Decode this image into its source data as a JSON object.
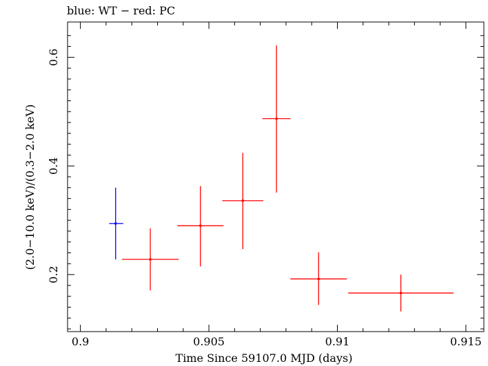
{
  "chart_data": {
    "type": "scatter",
    "title": "blue: WT − red: PC",
    "xlabel": "Time Since 59107.0 MJD (days)",
    "ylabel": "(2.0−10.0 keV)/(0.3−2.0 keV)",
    "xlim": [
      0.8995,
      0.9157
    ],
    "ylim": [
      0.095,
      0.665
    ],
    "x_ticks": [
      0.9,
      0.905,
      0.91,
      0.915
    ],
    "x_tick_labels": [
      "0.9",
      "0.905",
      "0.91",
      "0.915"
    ],
    "y_ticks": [
      0.2,
      0.4,
      0.6
    ],
    "y_tick_labels": [
      "0.2",
      "0.4",
      "0.6"
    ],
    "grid": false,
    "series": [
      {
        "name": "WT",
        "color": "#0000ff",
        "points": [
          {
            "x": 0.90137,
            "y": 0.294,
            "xerr_lo": 0.00025,
            "xerr_hi": 0.0003,
            "yerr_lo": 0.066,
            "yerr_hi": 0.066
          }
        ]
      },
      {
        "name": "PC",
        "color": "#ff0000",
        "points": [
          {
            "x": 0.90272,
            "y": 0.228,
            "xerr_lo": 0.0011,
            "xerr_hi": 0.0011,
            "yerr_lo": 0.057,
            "yerr_hi": 0.057
          },
          {
            "x": 0.90467,
            "y": 0.29,
            "xerr_lo": 0.0009,
            "xerr_hi": 0.0009,
            "yerr_lo": 0.075,
            "yerr_hi": 0.073
          },
          {
            "x": 0.90632,
            "y": 0.336,
            "xerr_lo": 0.0008,
            "xerr_hi": 0.0008,
            "yerr_lo": 0.089,
            "yerr_hi": 0.088
          },
          {
            "x": 0.90763,
            "y": 0.487,
            "xerr_lo": 0.00055,
            "xerr_hi": 0.00055,
            "yerr_lo": 0.136,
            "yerr_hi": 0.135
          },
          {
            "x": 0.90927,
            "y": 0.192,
            "xerr_lo": 0.0011,
            "xerr_hi": 0.0011,
            "yerr_lo": 0.048,
            "yerr_hi": 0.049
          },
          {
            "x": 0.91247,
            "y": 0.166,
            "xerr_lo": 0.00205,
            "xerr_hi": 0.00205,
            "yerr_lo": 0.034,
            "yerr_hi": 0.034
          }
        ]
      }
    ]
  }
}
